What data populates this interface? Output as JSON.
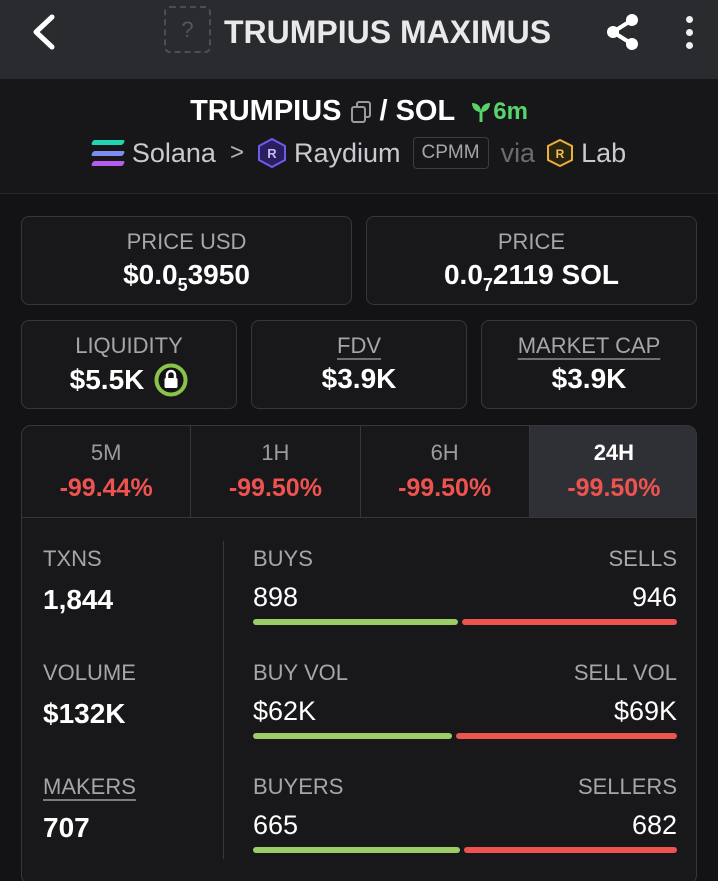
{
  "header": {
    "title": "TRUMPIUS MAXIMUS",
    "token_placeholder": "?",
    "icons": [
      "back-arrow-icon",
      "share-icon",
      "more-vertical-icon"
    ]
  },
  "pair": {
    "base": "TRUMPIUS",
    "separator": "/",
    "quote": "SOL",
    "age": "6m",
    "chain": "Solana",
    "chevron": ">",
    "dex": "Raydium",
    "pool_type": "CPMM",
    "via": "via",
    "launchpad": "Lab",
    "icon_letter": "R"
  },
  "price_usd": {
    "label": "PRICE USD",
    "prefix": "$0.0",
    "zeros": "5",
    "digits": "3950"
  },
  "price_native": {
    "label": "PRICE",
    "prefix": "0.0",
    "zeros": "7",
    "digits": "2119 SOL"
  },
  "liquidity": {
    "label": "LIQUIDITY",
    "value": "$5.5K"
  },
  "fdv": {
    "label": "FDV",
    "value": "$3.9K"
  },
  "market_cap": {
    "label": "MARKET CAP",
    "value": "$3.9K"
  },
  "tabs": [
    {
      "label": "5M",
      "change": "-99.44%"
    },
    {
      "label": "1H",
      "change": "-99.50%"
    },
    {
      "label": "6H",
      "change": "-99.50%"
    },
    {
      "label": "24H",
      "change": "-99.50%"
    }
  ],
  "active_tab": "24H",
  "stats": {
    "txns": {
      "label": "TXNS",
      "value": "1,844"
    },
    "volume": {
      "label": "VOLUME",
      "value": "$132K"
    },
    "makers": {
      "label": "MAKERS",
      "value": "707"
    },
    "buys": {
      "label": "BUYS",
      "value": "898"
    },
    "sells": {
      "label": "SELLS",
      "value": "946"
    },
    "buy_vol": {
      "label": "BUY VOL",
      "value": "$62K"
    },
    "sell_vol": {
      "label": "SELL VOL",
      "value": "$69K"
    },
    "buyers": {
      "label": "BUYERS",
      "value": "665"
    },
    "sellers": {
      "label": "SELLERS",
      "value": "682"
    },
    "buy_share": 0.487,
    "buy_vol_share": 0.473,
    "buyer_share": 0.494
  },
  "colors": {
    "background": "#131316",
    "header": "#2a2b2f",
    "positive": "#58d46a",
    "negative": "#ef5350",
    "buy_bar": "#9ccc65",
    "sell_bar": "#ef5350",
    "liquidity_lock_ring": "#8bc34a"
  }
}
